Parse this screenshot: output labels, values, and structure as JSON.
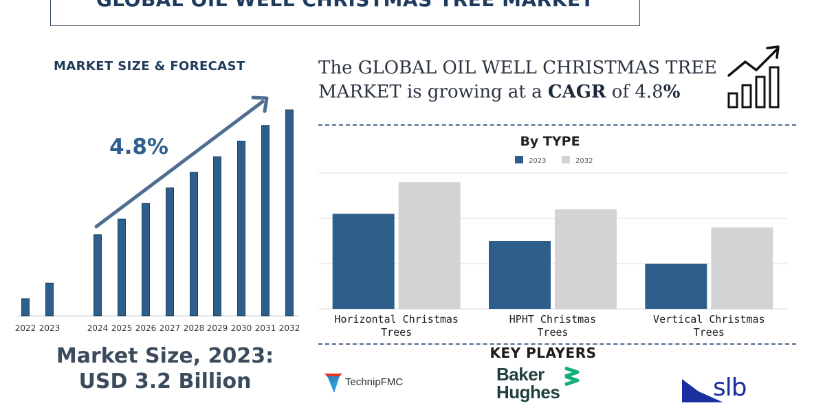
{
  "title": "GLOBAL OIL WELL CHRISTMAS TREE MARKET",
  "left_panel": {
    "heading": "MARKET SIZE & FORECAST",
    "cagr_label": "4.8%",
    "market_size_line1": "Market Size, 2023:",
    "market_size_line2": "USD 3.2 Billion"
  },
  "headline": {
    "prefix": "The GLOBAL OIL WELL CHRISTMAS TREE MARKET is growing at a ",
    "cagr_word": "CAGR",
    "middle": " of ",
    "value": "4.8",
    "suffix": "%"
  },
  "key_players": {
    "heading": "KEY PLAYERS",
    "players": [
      "TechnipFMC",
      "Baker Hughes",
      "slb"
    ]
  },
  "colors": {
    "bar_dark": "#2e5f8a",
    "bar_light": "#d3d3d3",
    "arrow": "#4f6e8f",
    "grid": "#dcdcdc",
    "baker_green": "#10b07a",
    "slb_blue": "#1a2fa0",
    "technip_red": "#e5352b",
    "technip_blue": "#1d8fd6"
  },
  "chart_data": [
    {
      "type": "bar",
      "categories": [
        "2022",
        "2023",
        "2024",
        "2025",
        "2026",
        "2027",
        "2028",
        "2029",
        "2030",
        "2031",
        "2032"
      ],
      "values": [
        1.1,
        2.1,
        5.2,
        6.2,
        7.2,
        8.2,
        9.2,
        10.2,
        11.2,
        12.2,
        13.2
      ],
      "annotation": "4.8%",
      "title": "MARKET SIZE & FORECAST"
    },
    {
      "type": "bar",
      "title": "By TYPE",
      "categories": [
        "Horizontal Christmas Trees",
        "HPHT Christmas Trees",
        "Vertical Christmas Trees"
      ],
      "series": [
        {
          "name": "2023",
          "values": [
            2.1,
            1.5,
            1.0
          ]
        },
        {
          "name": "2032",
          "values": [
            2.8,
            2.2,
            1.8
          ]
        }
      ],
      "ylim": [
        0,
        3.0
      ],
      "grid": true,
      "legend": "top-center"
    }
  ]
}
